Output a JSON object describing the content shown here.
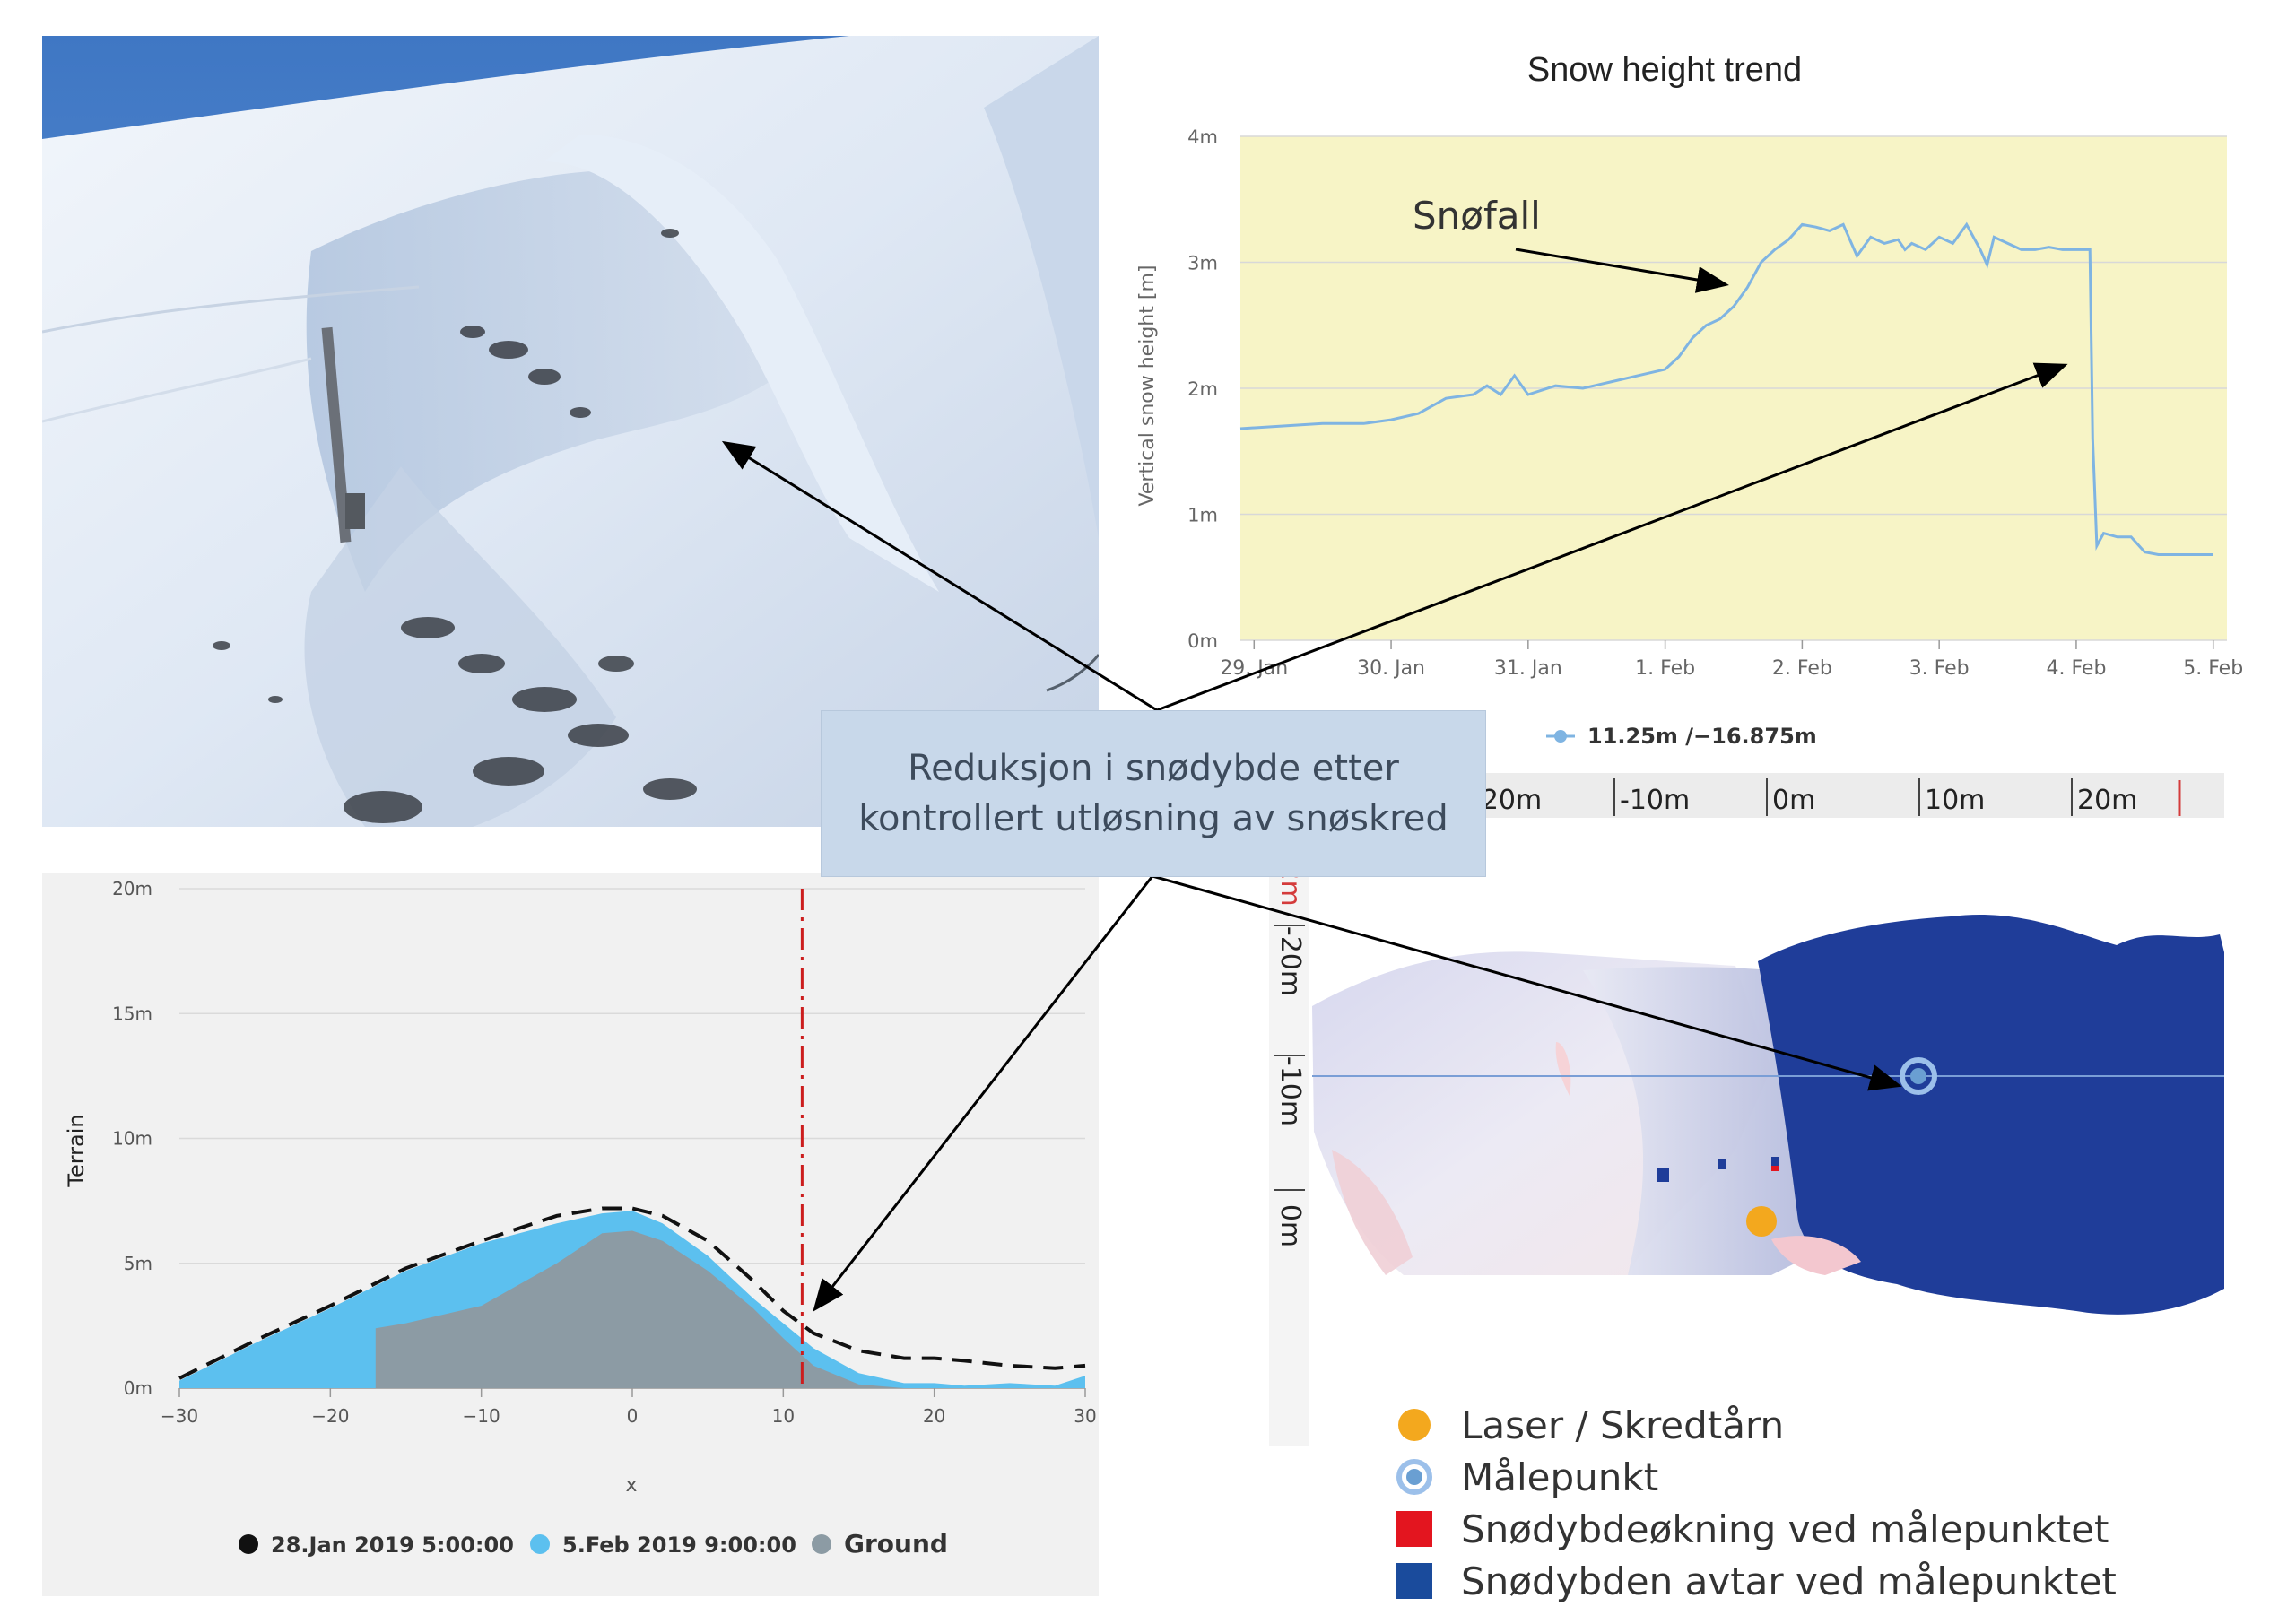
{
  "callout": {
    "line1": "Reduksjon i snødybde etter",
    "line2": "kontrollert utløsning av snøskred"
  },
  "chart_data": [
    {
      "type": "line",
      "title": "Snow height trend",
      "ylabel": "Vertical snow height [m]",
      "xlabel": "",
      "ylim": [
        0,
        4
      ],
      "y_ticks": [
        "0m",
        "1m",
        "2m",
        "3m",
        "4m"
      ],
      "x_ticks": [
        "29. Jan",
        "30. Jan",
        "31. Jan",
        "1. Feb",
        "2. Feb",
        "3. Feb",
        "4. Feb",
        "5. Feb"
      ],
      "x_tick_values": [
        0,
        1,
        2,
        3,
        4,
        5,
        6,
        7
      ],
      "annotation": "Snøfall",
      "background_color": "#f7f4c6",
      "grid": true,
      "legend_position": "bottom",
      "series": [
        {
          "name": "11.25m /−16.875m",
          "color": "#7fb4e2",
          "x": [
            -0.1,
            0.2,
            0.5,
            0.8,
            1.0,
            1.2,
            1.4,
            1.6,
            1.7,
            1.8,
            1.9,
            2.0,
            2.2,
            2.4,
            2.6,
            2.8,
            3.0,
            3.1,
            3.2,
            3.3,
            3.4,
            3.5,
            3.6,
            3.7,
            3.8,
            3.9,
            4.0,
            4.1,
            4.2,
            4.3,
            4.4,
            4.5,
            4.6,
            4.7,
            4.75,
            4.8,
            4.9,
            5.0,
            5.1,
            5.2,
            5.3,
            5.35,
            5.4,
            5.5,
            5.6,
            5.7,
            5.8,
            5.9,
            6.0,
            6.1,
            6.12,
            6.15,
            6.2,
            6.3,
            6.4,
            6.5,
            6.6,
            6.7,
            6.8,
            6.9,
            7.0
          ],
          "values": [
            1.68,
            1.7,
            1.72,
            1.72,
            1.75,
            1.8,
            1.92,
            1.95,
            2.02,
            1.95,
            2.1,
            1.95,
            2.02,
            2.0,
            2.05,
            2.1,
            2.15,
            2.25,
            2.4,
            2.5,
            2.55,
            2.65,
            2.8,
            3.0,
            3.1,
            3.18,
            3.3,
            3.28,
            3.25,
            3.3,
            3.05,
            3.2,
            3.15,
            3.18,
            3.1,
            3.15,
            3.1,
            3.2,
            3.15,
            3.3,
            3.1,
            2.98,
            3.2,
            3.15,
            3.1,
            3.1,
            3.12,
            3.1,
            3.1,
            3.1,
            1.6,
            0.75,
            0.85,
            0.82,
            0.82,
            0.7,
            0.68,
            0.68,
            0.68,
            0.68,
            0.68
          ]
        }
      ]
    },
    {
      "type": "area",
      "title": "",
      "xlabel": "x",
      "ylabel": "Terrain",
      "xlim": [
        -30,
        30
      ],
      "ylim": [
        0,
        20
      ],
      "x_ticks": [
        "−30",
        "−20",
        "−10",
        "0",
        "10",
        "20",
        "30"
      ],
      "x_tick_values": [
        -30,
        -20,
        -10,
        0,
        10,
        20,
        30
      ],
      "y_ticks": [
        "0m",
        "5m",
        "10m",
        "15m",
        "20m"
      ],
      "y_tick_values": [
        0,
        5,
        10,
        15,
        20
      ],
      "marker_x": 11.25,
      "legend_position": "bottom",
      "grid": true,
      "series": [
        {
          "name": "28.Jan 2019 5:00:00",
          "color": "#111111",
          "style": "dashed",
          "x": [
            -30,
            -25,
            -20,
            -15,
            -10,
            -5,
            -2,
            0,
            2,
            5,
            8,
            10,
            12,
            15,
            18,
            20,
            22,
            25,
            28,
            30
          ],
          "values": [
            0.4,
            1.9,
            3.3,
            4.8,
            5.9,
            6.9,
            7.2,
            7.2,
            6.9,
            5.9,
            4.3,
            3.1,
            2.2,
            1.5,
            1.2,
            1.2,
            1.1,
            0.9,
            0.8,
            0.9
          ]
        },
        {
          "name": "5.Feb 2019 9:00:00",
          "color": "#5cc0ef",
          "style": "area",
          "x": [
            -30,
            -25,
            -20,
            -15,
            -10,
            -5,
            -2,
            0,
            2,
            5,
            8,
            10,
            12,
            15,
            18,
            20,
            22,
            25,
            28,
            30
          ],
          "values": [
            0.3,
            1.8,
            3.2,
            4.7,
            5.8,
            6.6,
            7.0,
            7.1,
            6.6,
            5.3,
            3.6,
            2.6,
            1.6,
            0.6,
            0.2,
            0.2,
            0.1,
            0.2,
            0.1,
            0.5
          ]
        },
        {
          "name": "Ground",
          "color": "#8c9ba4",
          "style": "area",
          "x": [
            -17,
            -15,
            -10,
            -5,
            -2,
            0,
            2,
            5,
            8,
            10,
            12,
            15,
            18,
            20,
            22,
            25,
            28,
            30
          ],
          "values": [
            2.4,
            2.6,
            3.3,
            5.0,
            6.2,
            6.3,
            5.9,
            4.7,
            3.2,
            2.0,
            0.9,
            0.15,
            0,
            0,
            0,
            0,
            0,
            0
          ]
        }
      ]
    },
    {
      "type": "heatmap",
      "title": "",
      "x_ticks": [
        "-20m",
        "-10m",
        "0m",
        "10m",
        "20m"
      ],
      "y_ticks": [
        "52m",
        "-20m",
        "-10m",
        "0m"
      ],
      "colors": {
        "decrease": "#1f3d99",
        "increase": "#e08080",
        "laser": "#f3a81e",
        "measure_point": "#6a9fd2"
      }
    }
  ],
  "heatmap_legend": [
    {
      "icon": "laser-dot-icon",
      "label": "Laser / Skredtårn",
      "color": "#f3a81e"
    },
    {
      "icon": "target-icon",
      "label": "Målepunkt",
      "color": "#6a9fd2"
    },
    {
      "icon": "red-square-icon",
      "label": "Snødybdeøkning ved målepunktet",
      "color": "#e3151f"
    },
    {
      "icon": "blue-square-icon",
      "label": "Snødybden avtar ved målepunktet",
      "color": "#1a4b9c"
    }
  ]
}
